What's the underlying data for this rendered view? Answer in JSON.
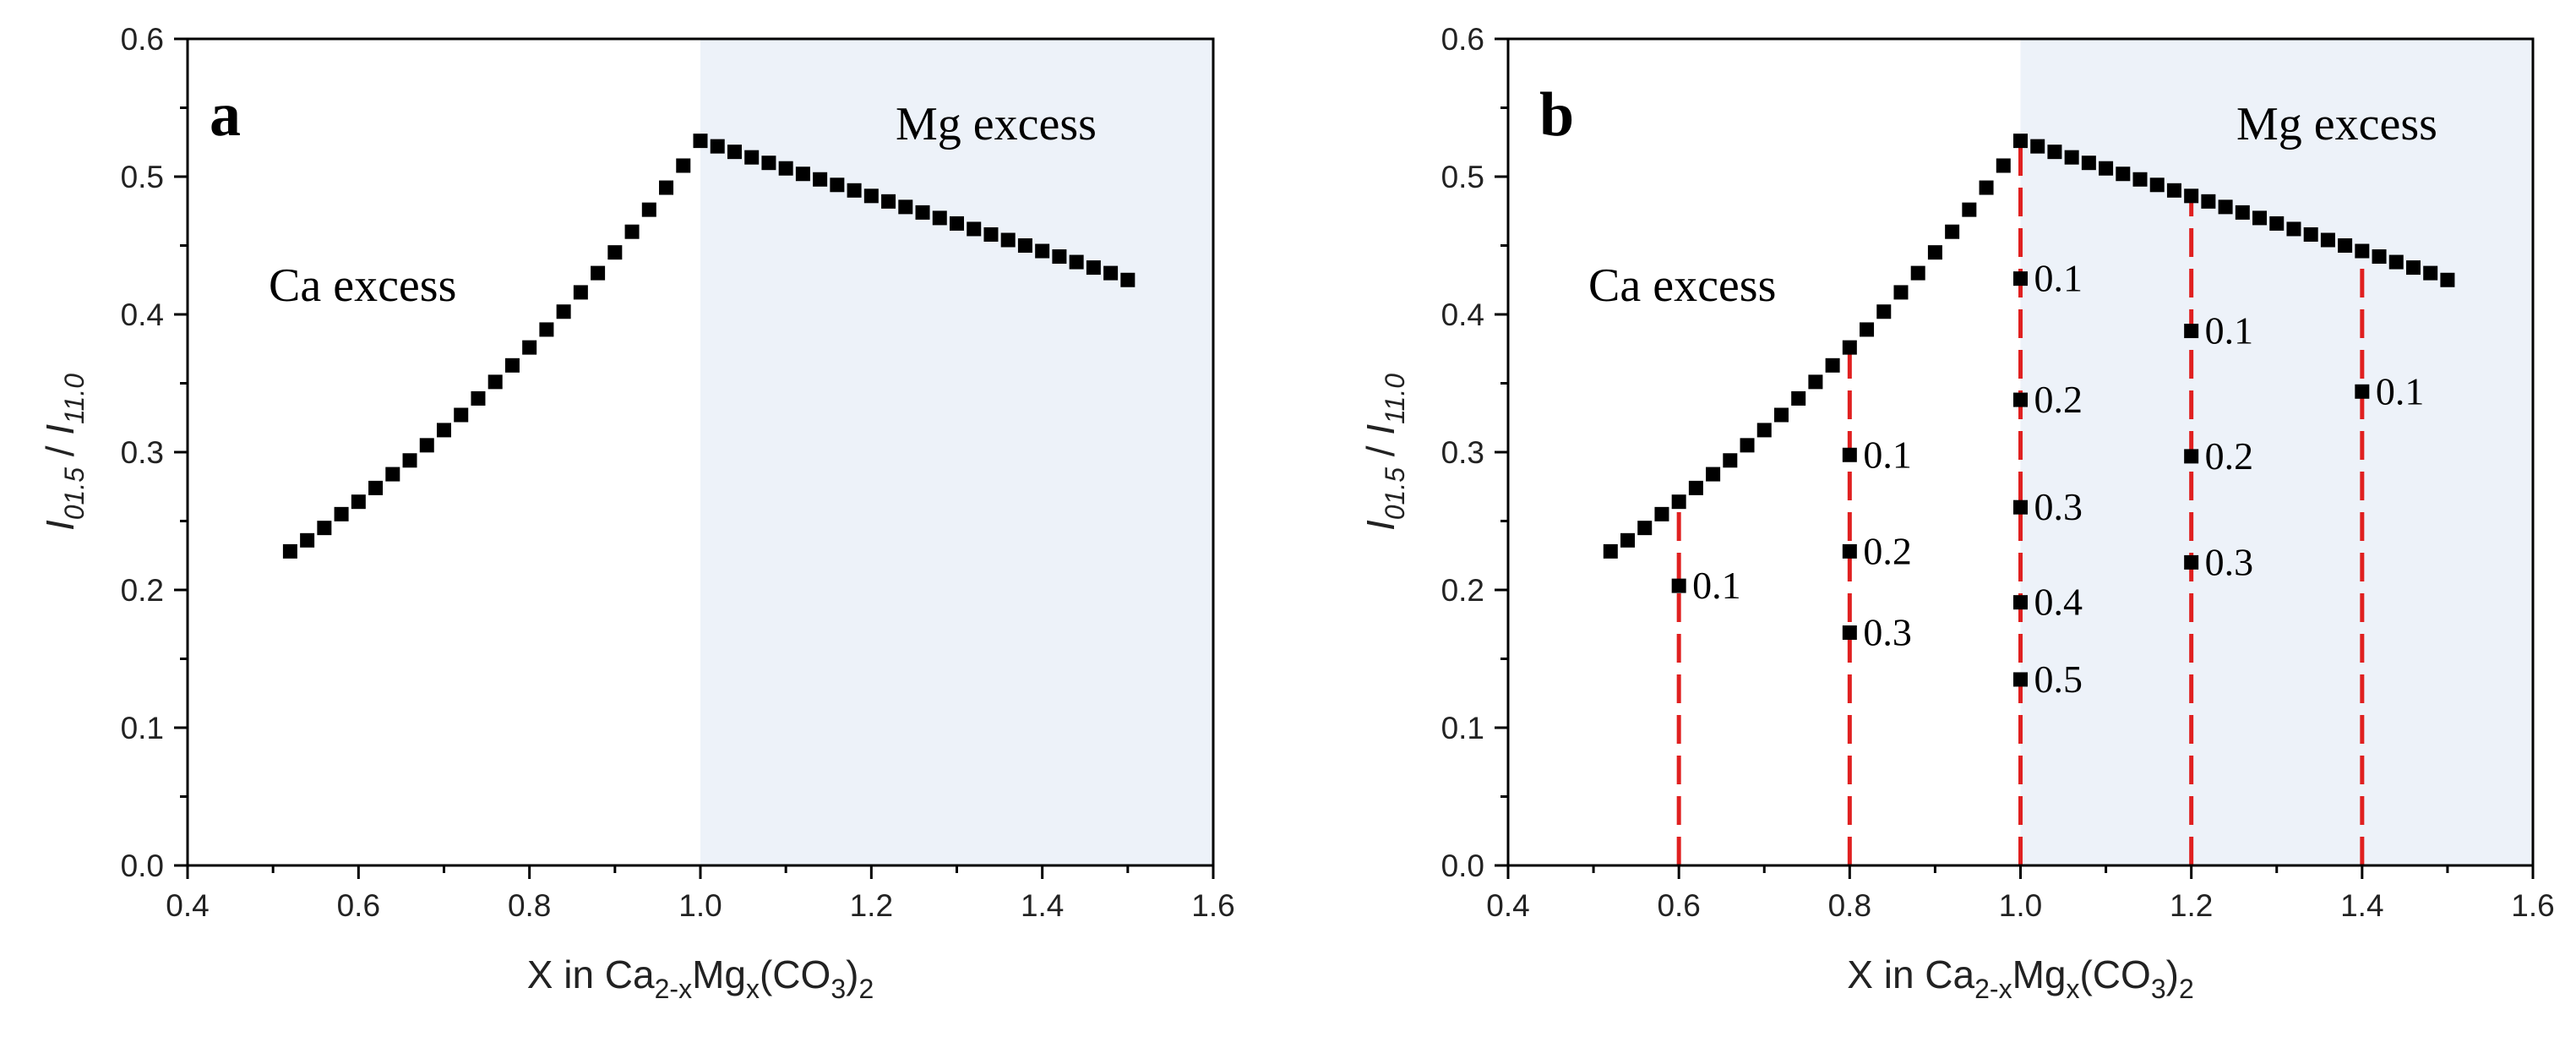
{
  "chart_data": [
    {
      "panel": "a",
      "type": "scatter",
      "xlim": [
        0.4,
        1.6
      ],
      "ylim": [
        0.0,
        0.6
      ],
      "xticks": [
        "0.4",
        "0.6",
        "0.8",
        "1.0",
        "1.2",
        "1.4",
        "1.6"
      ],
      "yticks": [
        "0.0",
        "0.1",
        "0.2",
        "0.3",
        "0.4",
        "0.5",
        "0.6"
      ],
      "xlabel": {
        "pre": "X in Ca",
        "sub1": "2-x",
        "mid": "Mg",
        "sub2": "x",
        "mid2": "(CO",
        "sub3": "3",
        "post": ")",
        "sub4": "2"
      },
      "ylabel": {
        "i1": "I",
        "s1": "01.5",
        "sep": " / ",
        "i2": "I",
        "s2": "11.0"
      },
      "shaded_region": {
        "x_from": 1.0,
        "x_to": 1.6,
        "color": "#edf2f9"
      },
      "region_labels": [
        "Ca excess",
        "Mg excess"
      ],
      "marker_color": "#000000",
      "series": [
        {
          "x": [
            0.52,
            0.54,
            0.56,
            0.58,
            0.6,
            0.62,
            0.64,
            0.66,
            0.68,
            0.7,
            0.72,
            0.74,
            0.76,
            0.78,
            0.8,
            0.82,
            0.84,
            0.86,
            0.88,
            0.9,
            0.92,
            0.94,
            0.96,
            0.98,
            1.0,
            1.02,
            1.04,
            1.06,
            1.08,
            1.1,
            1.12,
            1.14,
            1.16,
            1.18,
            1.2,
            1.22,
            1.24,
            1.26,
            1.28,
            1.3,
            1.32,
            1.34,
            1.36,
            1.38,
            1.4,
            1.42,
            1.44,
            1.46,
            1.48,
            1.5
          ],
          "y": [
            0.228,
            0.236,
            0.245,
            0.255,
            0.264,
            0.274,
            0.284,
            0.294,
            0.305,
            0.316,
            0.327,
            0.339,
            0.351,
            0.363,
            0.376,
            0.389,
            0.402,
            0.416,
            0.43,
            0.445,
            0.46,
            0.476,
            0.492,
            0.508,
            0.526,
            0.522,
            0.518,
            0.514,
            0.51,
            0.506,
            0.502,
            0.498,
            0.494,
            0.49,
            0.486,
            0.482,
            0.478,
            0.474,
            0.47,
            0.466,
            0.462,
            0.458,
            0.454,
            0.45,
            0.446,
            0.442,
            0.438,
            0.434,
            0.43,
            0.425
          ]
        }
      ]
    },
    {
      "panel": "b",
      "type": "scatter",
      "xlim": [
        0.4,
        1.6
      ],
      "ylim": [
        0.0,
        0.6
      ],
      "xticks": [
        "0.4",
        "0.6",
        "0.8",
        "1.0",
        "1.2",
        "1.4",
        "1.6"
      ],
      "yticks": [
        "0.0",
        "0.1",
        "0.2",
        "0.3",
        "0.4",
        "0.5",
        "0.6"
      ],
      "xlabel": {
        "pre": "X in Ca",
        "sub1": "2-x",
        "mid": "Mg",
        "sub2": "x",
        "mid2": "(CO",
        "sub3": "3",
        "post": ")",
        "sub4": "2"
      },
      "ylabel": {
        "i1": "I",
        "s1": "01.5",
        "sep": " / ",
        "i2": "I",
        "s2": "11.0"
      },
      "shaded_region": {
        "x_from": 1.0,
        "x_to": 1.6,
        "color": "#edf2f9"
      },
      "region_labels": [
        "Ca excess",
        "Mg excess"
      ],
      "marker_color": "#000000",
      "dashed_line_color": "#e02020",
      "dashed_lines": [
        {
          "x": 0.6,
          "y_top": 0.264
        },
        {
          "x": 0.8,
          "y_top": 0.376
        },
        {
          "x": 1.0,
          "y_top": 0.526
        },
        {
          "x": 1.2,
          "y_top": 0.486
        },
        {
          "x": 1.4,
          "y_top": 0.446
        }
      ],
      "series": [
        {
          "x": [
            0.52,
            0.54,
            0.56,
            0.58,
            0.6,
            0.62,
            0.64,
            0.66,
            0.68,
            0.7,
            0.72,
            0.74,
            0.76,
            0.78,
            0.8,
            0.82,
            0.84,
            0.86,
            0.88,
            0.9,
            0.92,
            0.94,
            0.96,
            0.98,
            1.0,
            1.02,
            1.04,
            1.06,
            1.08,
            1.1,
            1.12,
            1.14,
            1.16,
            1.18,
            1.2,
            1.22,
            1.24,
            1.26,
            1.28,
            1.3,
            1.32,
            1.34,
            1.36,
            1.38,
            1.4,
            1.42,
            1.44,
            1.46,
            1.48,
            1.5
          ],
          "y": [
            0.228,
            0.236,
            0.245,
            0.255,
            0.264,
            0.274,
            0.284,
            0.294,
            0.305,
            0.316,
            0.327,
            0.339,
            0.351,
            0.363,
            0.376,
            0.389,
            0.402,
            0.416,
            0.43,
            0.445,
            0.46,
            0.476,
            0.492,
            0.508,
            0.526,
            0.522,
            0.518,
            0.514,
            0.51,
            0.506,
            0.502,
            0.498,
            0.494,
            0.49,
            0.486,
            0.482,
            0.478,
            0.474,
            0.47,
            0.466,
            0.462,
            0.458,
            0.454,
            0.45,
            0.446,
            0.442,
            0.438,
            0.434,
            0.43,
            0.425
          ]
        }
      ],
      "labeled_points": [
        {
          "x": 0.6,
          "y": 0.203,
          "label": "0.1"
        },
        {
          "x": 0.8,
          "y": 0.298,
          "label": "0.1"
        },
        {
          "x": 0.8,
          "y": 0.228,
          "label": "0.2"
        },
        {
          "x": 0.8,
          "y": 0.169,
          "label": "0.3"
        },
        {
          "x": 1.0,
          "y": 0.426,
          "label": "0.1"
        },
        {
          "x": 1.0,
          "y": 0.338,
          "label": "0.2"
        },
        {
          "x": 1.0,
          "y": 0.26,
          "label": "0.3"
        },
        {
          "x": 1.0,
          "y": 0.191,
          "label": "0.4"
        },
        {
          "x": 1.0,
          "y": 0.135,
          "label": "0.5"
        },
        {
          "x": 1.2,
          "y": 0.388,
          "label": "0.1"
        },
        {
          "x": 1.2,
          "y": 0.297,
          "label": "0.2"
        },
        {
          "x": 1.2,
          "y": 0.22,
          "label": "0.3"
        },
        {
          "x": 1.4,
          "y": 0.344,
          "label": "0.1"
        }
      ]
    }
  ]
}
